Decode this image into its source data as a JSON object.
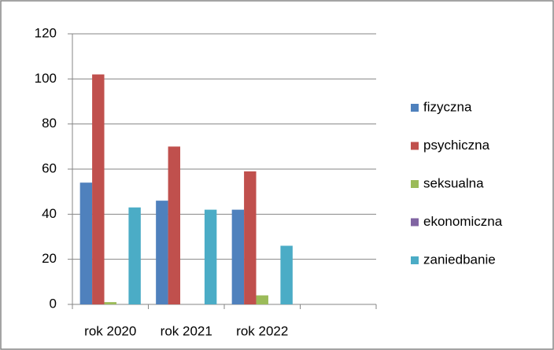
{
  "chart_data": {
    "type": "bar",
    "categories": [
      "rok 2020",
      "rok 2021",
      "rok 2022",
      null
    ],
    "series": [
      {
        "name": "fizyczna",
        "color": "#4f81bd",
        "values": [
          54,
          46,
          42,
          null
        ]
      },
      {
        "name": "psychiczna",
        "color": "#c0504d",
        "values": [
          102,
          70,
          59,
          null
        ]
      },
      {
        "name": "seksualna",
        "color": "#9bbb59",
        "values": [
          1,
          0,
          4,
          null
        ]
      },
      {
        "name": "ekonomiczna",
        "color": "#8064a2",
        "values": [
          0,
          0,
          0,
          null
        ]
      },
      {
        "name": "zaniedbanie",
        "color": "#4bacc6",
        "values": [
          43,
          42,
          26,
          null
        ]
      }
    ],
    "ylim": [
      0,
      120
    ],
    "yticks": [
      0,
      20,
      40,
      60,
      80,
      100,
      120
    ],
    "grid": true,
    "legend": "right"
  }
}
